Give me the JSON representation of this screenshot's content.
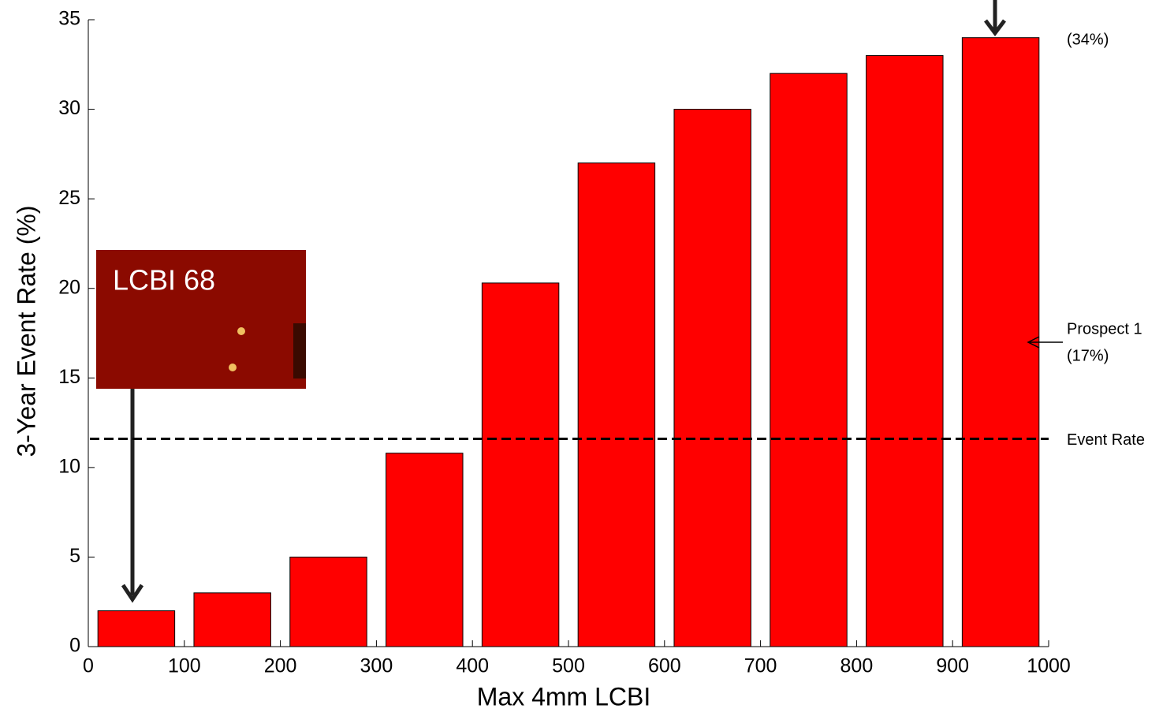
{
  "chart_data": {
    "type": "histogram",
    "x_label": "Max 4mm LCBI",
    "y_label": "3-Year Event Rate (%)",
    "bins": [
      0,
      100,
      200,
      300,
      400,
      500,
      600,
      700,
      800,
      900,
      1000
    ],
    "values": [
      2,
      3,
      5,
      10.8,
      20.3,
      27,
      30,
      32,
      33,
      34
    ],
    "color": "#ff0000",
    "xlim": [
      0,
      1000
    ],
    "xticks": [
      0,
      100,
      200,
      300,
      400,
      500,
      600,
      700,
      800,
      900,
      1000
    ],
    "ylim": [
      0,
      35
    ],
    "yticks": [
      0,
      5,
      10,
      15,
      20,
      25,
      30,
      35
    ],
    "reference_line": {
      "value": 11.6,
      "label": "Event Rate"
    },
    "annotations": {
      "prospect": "Prospect 1",
      "prospect_rate": "(17%)",
      "top_rate": "(34%)",
      "inset": "LCBI 68"
    }
  }
}
